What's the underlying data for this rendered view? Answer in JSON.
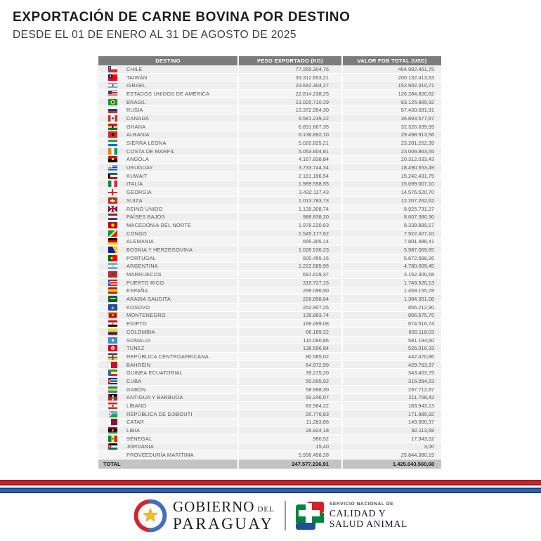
{
  "header": {
    "title": "EXPORTACIÓN DE CARNE BOVINA POR DESTINO",
    "subtitle": "DESDE EL 01 DE ENERO AL 31 DE AGOSTO DE 2025"
  },
  "colors": {
    "header_bg": "#7c7c7c",
    "row_bg": "#eeeeee",
    "total_bg": "#c3c3c3",
    "stripe_red": "#c8242d",
    "stripe_blue": "#2b62ae",
    "text": "#55565a"
  },
  "table": {
    "columns": [
      "DESTINO",
      "PESO EXPORTADO (KG)",
      "VALOR FOB TOTAL (USD)"
    ],
    "rows": [
      {
        "id": "chile",
        "name": "CHILE",
        "kg": "77.265.304,76",
        "usd": "464.902.461,75",
        "flag": "radial-gradient(circle at 17% 26%, #fff 1px, transparent 1.1px), linear-gradient(#0033a0,#0033a0) left top/34% 50% no-repeat, linear-gradient(#fff 0 50%, #d52b1e 0)"
      },
      {
        "id": "taiwan",
        "name": "TAIWÁN",
        "kg": "33.312.853,21",
        "usd": "200.132.413,53",
        "flag": "radial-gradient(circle at 24% 26%, #fff 1px, transparent 1.1px), linear-gradient(#000095,#000095) left top/48% 50% no-repeat, #fe0000"
      },
      {
        "id": "israel",
        "name": "ISRAEL",
        "kg": "23.642.304,27",
        "usd": "152.902.310,71",
        "flag": "radial-gradient(circle at 50% 50%, #0038b8 1.2px, transparent 1.3px), linear-gradient(#fff 0 16%, #0038b8 0 30%, #fff 0 70%, #0038b8 0 84%, #fff 0)"
      },
      {
        "id": "estados-unidos",
        "name": "ESTADOS UNIDOS DE AMÉRICA",
        "kg": "22.814.238,25",
        "usd": "126.284.820,82",
        "flag": "linear-gradient(#3c3b6e,#3c3b6e) left top/42% 50% no-repeat, repeating-linear-gradient(#b22234 0 1.1px, #fff 1.1px 2.2px)"
      },
      {
        "id": "brasil",
        "name": "BRASIL",
        "kg": "13.025.710,29",
        "usd": "83.125.965,92",
        "flag": "radial-gradient(circle at 50% 50%, #002776 1.4px, #ffdf00 1.5px 3px, #009c3b 3.2px)"
      },
      {
        "id": "rusia",
        "name": "RUSIA",
        "kg": "13.372.954,30",
        "usd": "57.430.581,81",
        "flag": "linear-gradient(#fff 0 33%, #0039a6 0 67%, #d52b1e 0)"
      },
      {
        "id": "canada",
        "name": "CANADÁ",
        "kg": "6.581.239,22",
        "usd": "36.893.577,87",
        "flag": "radial-gradient(circle at 50% 50%, #d52b1e 1.6px, transparent 1.7px), linear-gradient(90deg, #d52b1e 0 26%, #fff 0 74%, #d52b1e 0)"
      },
      {
        "id": "ghana",
        "name": "GHANA",
        "kg": "6.831.667,35",
        "usd": "32.326.639,99",
        "flag": "radial-gradient(circle at 50% 50%, #000 1.3px, transparent 1.4px), linear-gradient(#ce1126 0 33%, #fcd116 0 67%, #006b3f 0)"
      },
      {
        "id": "albania",
        "name": "ALBANIA",
        "kg": "6.136.892,10",
        "usd": "29.498.913,56",
        "flag": "radial-gradient(circle at 50% 50%, #000 1.8px, transparent 1.9px), #e41e20"
      },
      {
        "id": "sierra-leona",
        "name": "SIERRA LEONA",
        "kg": "5.020.825,21",
        "usd": "23.281.252,39",
        "flag": "linear-gradient(#1eb53a 0 33%, #fff 0 67%, #0072c6 0)"
      },
      {
        "id": "costa-de-marfil",
        "name": "COSTA DE MARFIL",
        "kg": "5.053.604,81",
        "usd": "23.009.863,55",
        "flag": "linear-gradient(90deg, #f77f00 0 33%, #fff 0 67%, #009e60 0)"
      },
      {
        "id": "angola",
        "name": "ANGOLA",
        "kg": "4.167.838,84",
        "usd": "20.312.033,43",
        "flag": "radial-gradient(circle at 50% 50%, #ffec00 1.6px, transparent 1.7px), linear-gradient(#cc092f 0 50%, #000 0)"
      },
      {
        "id": "uruguay",
        "name": "URUGUAY",
        "kg": "3.733.744,34",
        "usd": "18.490.553,49",
        "flag": "radial-gradient(circle at 20% 25%, #fcd116 1.4px, transparent 1.5px), linear-gradient(#fff,#fff) left top/45% 50% no-repeat, repeating-linear-gradient(#fff 0 1.4px, #0038a8 1.4px 2.8px)"
      },
      {
        "id": "kuwait",
        "name": "KUWAIT",
        "kg": "2.191.196,54",
        "usd": "15.242.431,75",
        "flag": "conic-gradient(from 225deg at 30% 50%, #000 0 90deg, transparent 90deg), linear-gradient(#007a3d 0 33%, #fff 0 67%, #ce1126 0)"
      },
      {
        "id": "italia",
        "name": "ITALIA",
        "kg": "1.989.558,55",
        "usd": "15.099.007,10",
        "flag": "linear-gradient(90deg, #009246 0 33%, #fff 0 67%, #ce2b37 0)"
      },
      {
        "id": "georgia",
        "name": "GEORGIA",
        "kg": "3.432.117,43",
        "usd": "14.576.520,70",
        "flag": "linear-gradient(#f00,#f00) center/100% 22% no-repeat, linear-gradient(#f00,#f00) center/16% 100% no-repeat, #fff"
      },
      {
        "id": "suiza",
        "name": "SUIZA",
        "kg": "1.013.783,73",
        "usd": "12.207.262,62",
        "flag": "linear-gradient(#fff,#fff) center/56% 18% no-repeat, linear-gradient(#fff,#fff) center/18% 56% no-repeat, #d52b1e"
      },
      {
        "id": "reino-unido",
        "name": "REINO UNIDO",
        "kg": "1.139.308,74",
        "usd": "9.925.731,27",
        "flag": "linear-gradient(#c8102e,#c8102e) center/100% 22% no-repeat, linear-gradient(#c8102e,#c8102e) center/20% 100% no-repeat, linear-gradient(45deg, transparent 43%, #fff 0 57%, transparent 0), linear-gradient(135deg, transparent 43%, #fff 0 57%, transparent 0), #012169"
      },
      {
        "id": "paises-bajos",
        "name": "PAÍSES BAJOS",
        "kg": "988.838,20",
        "usd": "8.607.380,30",
        "flag": "linear-gradient(#ae1c28 0 33%, #fff 0 67%, #21468b 0)"
      },
      {
        "id": "macedonia-del-norte",
        "name": "MACEDONIA DEL NORTE",
        "kg": "1.978.220,63",
        "usd": "8.339.889,17",
        "flag": "radial-gradient(circle at 50% 50%, #ffe600 2.2px, transparent 2.3px), #d20000"
      },
      {
        "id": "congo",
        "name": "CONGO",
        "kg": "1.545.177,62",
        "usd": "7.922.427,10",
        "flag": "linear-gradient(135deg, #009543 0 42%, #fbde4a 0 58%, #dc241f 0)"
      },
      {
        "id": "alemania",
        "name": "ALEMANIA",
        "kg": "656.305,14",
        "usd": "7.801.488,41",
        "flag": "linear-gradient(#000 0 33%, #d00 0 67%, #ffce00 0)"
      },
      {
        "id": "bosnia-y-herzegovina",
        "name": "BOSNIA Y HERZEGOVINA",
        "kg": "1.026.536,23",
        "usd": "5.987.069,65",
        "flag": "conic-gradient(from 90deg at 45% 0%, #fecb00 0 62deg, transparent 62deg), #002395"
      },
      {
        "id": "portugal",
        "name": "PORTUGAL",
        "kg": "600.455,16",
        "usd": "5.672.568,26",
        "flag": "radial-gradient(circle at 38% 50%, #ffe600 1.6px, transparent 1.7px), linear-gradient(90deg, #060 0 38%, #f00 0)"
      },
      {
        "id": "argentina",
        "name": "ARGENTINA",
        "kg": "1.222.585,95",
        "usd": "4.780.009,45",
        "flag": "radial-gradient(circle at 50% 50%, #f6b40e 1.2px, transparent 1.3px), linear-gradient(#74acdf 0 33%, #fff 0 67%, #74acdf 0)"
      },
      {
        "id": "marruecos",
        "name": "MARRUECOS",
        "kg": "691.629,37",
        "usd": "3.152.300,68",
        "flag": "radial-gradient(circle at 50% 50%, #006233 1.4px, transparent 1.5px), #c1272d"
      },
      {
        "id": "puerto-rico",
        "name": "PUERTO RICO",
        "kg": "315.727,15",
        "usd": "1.749.520,13",
        "flag": "radial-gradient(circle at 13% 50%, #fff 1px, transparent 1.1px), conic-gradient(from 225deg at 38% 50%, #0050f0 0 90deg, transparent 90deg), linear-gradient(#ed0000 0 20%, #fff 0 40%, #ed0000 0 60%, #fff 0 80%, #ed0000 0)"
      },
      {
        "id": "espana",
        "name": "ESPAÑA",
        "kg": "299.096,90",
        "usd": "1.459.155,78",
        "flag": "linear-gradient(#aa151b 0 25%, #f1bf00 0 75%, #aa151b 0)"
      },
      {
        "id": "arabia-saudita",
        "name": "ARABIA SAUDITA",
        "kg": "226.898,84",
        "usd": "1.384.351,08",
        "flag": "linear-gradient(#fff,#fff) 50% 42%/60% 14% no-repeat, #165d31"
      },
      {
        "id": "kosovo",
        "name": "KOSOVO",
        "kg": "252.907,25",
        "usd": "855.212,90",
        "flag": "radial-gradient(circle at 50% 58%, #d0a650 1.8px, transparent 1.9px), #244aa5"
      },
      {
        "id": "montenegro",
        "name": "MONTENEGRO",
        "kg": "139.883,74",
        "usd": "806.575,76",
        "flag": "radial-gradient(circle at 50% 50%, #ffd700 1.4px, transparent 1.5px), linear-gradient(#c40308,#c40308) center/84% 72% no-repeat, #d3ae3b"
      },
      {
        "id": "egipto",
        "name": "EGIPTO",
        "kg": "168.499,08",
        "usd": "674.516,74",
        "flag": "radial-gradient(circle at 50% 50%, #c09300 1.2px, transparent 1.3px), linear-gradient(#ce1126 0 33%, #fff 0 67%, #000 0)"
      },
      {
        "id": "colombia",
        "name": "COLOMBIA",
        "kg": "66.189,22",
        "usd": "600.118,03",
        "flag": "linear-gradient(#fcd116 0 50%, #003893 0 75%, #ce1126 0)"
      },
      {
        "id": "somalia",
        "name": "SOMALIA",
        "kg": "110.090,86",
        "usd": "581.194,60",
        "flag": "radial-gradient(circle at 50% 50%, #fff 1.7px, transparent 1.8px), #4189dd"
      },
      {
        "id": "tunez",
        "name": "TÚNEZ",
        "kg": "138.596,84",
        "usd": "526.016,33",
        "flag": "radial-gradient(circle at 50% 50%, #e70013 1px, #fff 1.1px 2.6px, #e70013 2.7px)"
      },
      {
        "id": "republica-centroafricana",
        "name": "REPÚBLICA CENTROAFRICANA",
        "kg": "80.585,02",
        "usd": "442.470,86",
        "flag": "linear-gradient(90deg, transparent 0 42%, #d21034 0 58%, transparent 0), linear-gradient(#003082 0 25%, #fff 0 50%, #289728 0 75%, #ffce00 0)"
      },
      {
        "id": "bahrein",
        "name": "BAHRÉIN",
        "kg": "64.972,99",
        "usd": "429.763,97",
        "flag": "linear-gradient(90deg, #fff 0 32%, #ce1126 0)"
      },
      {
        "id": "guinea-ecuatorial",
        "name": "GUINEA ECUATORIAL",
        "kg": "39.215,20",
        "usd": "343.403,79",
        "flag": "conic-gradient(from 225deg at 35% 50%, #0073ce 0 90deg, transparent 90deg), linear-gradient(#3e9a00 0 33%, #fff 0 67%, #e32118 0)"
      },
      {
        "id": "cuba",
        "name": "CUBA",
        "kg": "50.005,92",
        "usd": "316.094,23",
        "flag": "radial-gradient(circle at 13% 50%, #fff 1px, transparent 1.1px), conic-gradient(from 225deg at 38% 50%, #cf142b 0 90deg, transparent 90deg), linear-gradient(#002a8f 0 20%, #fff 0 40%, #002a8f 0 60%, #fff 0 80%, #002a8f 0)"
      },
      {
        "id": "gabon",
        "name": "GABÓN",
        "kg": "58.988,30",
        "usd": "297.712,97",
        "flag": "linear-gradient(#009e60 0 33%, #fcd116 0 67%, #3a75c4 0)"
      },
      {
        "id": "antigua-y-barbuda",
        "name": "ANTIGUA Y BARBUDA",
        "kg": "50.246,07",
        "usd": "211.708,42",
        "flag": "linear-gradient(to bottom right, transparent 48%, #ce1126 49%) 100% 0/50% 100% no-repeat, linear-gradient(to bottom left, transparent 48%, #ce1126 49%) 0 0/50% 100% no-repeat, radial-gradient(circle at 50% 32%, #fcd116 1.6px, transparent 1.7px), linear-gradient(#000 0 45%, #0072c6 0 72%, #fff 0)"
      },
      {
        "id": "libano",
        "name": "LÍBANO",
        "kg": "83.964,22",
        "usd": "183.943,13",
        "flag": "radial-gradient(circle at 50% 50%, #00a651 1.6px, transparent 1.7px), linear-gradient(#ed1c24 0 28%, #fff 0 72%, #ed1c24 0)"
      },
      {
        "id": "republica-de-djibouti",
        "name": "REPÚBLICA DE DJIBOUTI",
        "kg": "20.776,83",
        "usd": "171.985,92",
        "flag": "radial-gradient(circle at 16% 50%, #d7141a 1px, transparent 1.1px), conic-gradient(from 225deg at 40% 50%, #fff 0 90deg, transparent 90deg), linear-gradient(#6ab2e7 0 50%, #12ad2b 0)"
      },
      {
        "id": "catar",
        "name": "CATAR",
        "kg": "11.283,86",
        "usd": "149.900,37",
        "flag": "linear-gradient(90deg, #fff 0 30%, #8a1538 0)"
      },
      {
        "id": "libia",
        "name": "LIBIA",
        "kg": "26.924,18",
        "usd": "92.113,68",
        "flag": "radial-gradient(circle at 50% 50%, #fff 1.1px, transparent 1.2px), linear-gradient(#e70013 0 25%, #000 0 75%, #239e46 0)"
      },
      {
        "id": "senegal",
        "name": "SENEGAL",
        "kg": "980,52",
        "usd": "17.943,52",
        "flag": "radial-gradient(circle at 50% 50%, #00853f 1.2px, transparent 1.3px), linear-gradient(90deg, #00853f 0 33%, #fdef42 0 67%, #e31b23 0)"
      },
      {
        "id": "jordania",
        "name": "JORDANIA",
        "kg": "15,40",
        "usd": "3,00",
        "flag": "radial-gradient(circle at 12% 50%, #fff .8px, transparent .9px), conic-gradient(from 225deg at 38% 50%, #ce1126 0 90deg, transparent 90deg), linear-gradient(#000 0 33%, #fff 0 67%, #007a3d 0)"
      },
      {
        "id": "proveeduria-maritima",
        "name": "PROVEEDURÍA MARÍTIMA",
        "kg": "5.936.498,28",
        "usd": "25.844.380,19",
        "flag": ""
      }
    ],
    "total": {
      "label": "TOTAL",
      "kg": "247.577.236,91",
      "usd": "1.425.043.560,68"
    }
  },
  "footer": {
    "gov_line1": "GOBIERNO",
    "gov_del": "DEL",
    "gov_line2": "PARAGUAY",
    "senacsa_line1": "SERVICIO NACIONAL DE",
    "senacsa_line2": "CALIDAD Y",
    "senacsa_line3": "SALUD ANIMAL"
  }
}
